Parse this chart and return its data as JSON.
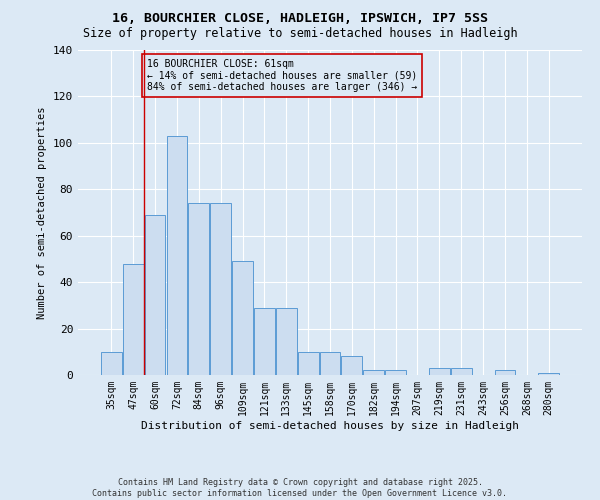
{
  "title1": "16, BOURCHIER CLOSE, HADLEIGH, IPSWICH, IP7 5SS",
  "title2": "Size of property relative to semi-detached houses in Hadleigh",
  "xlabel": "Distribution of semi-detached houses by size in Hadleigh",
  "ylabel": "Number of semi-detached properties",
  "categories": [
    "35sqm",
    "47sqm",
    "60sqm",
    "72sqm",
    "84sqm",
    "96sqm",
    "109sqm",
    "121sqm",
    "133sqm",
    "145sqm",
    "158sqm",
    "170sqm",
    "182sqm",
    "194sqm",
    "207sqm",
    "219sqm",
    "231sqm",
    "243sqm",
    "256sqm",
    "268sqm",
    "280sqm"
  ],
  "values": [
    10,
    48,
    69,
    103,
    74,
    74,
    49,
    29,
    29,
    10,
    10,
    8,
    2,
    2,
    0,
    3,
    3,
    0,
    2,
    0,
    1
  ],
  "bar_color": "#ccddf0",
  "bar_edge_color": "#5b9bd5",
  "property_label": "16 BOURCHIER CLOSE: 61sqm",
  "pct_smaller": 14,
  "pct_larger": 84,
  "n_smaller": 59,
  "n_larger": 346,
  "annotation_box_color": "#cc0000",
  "background_color": "#dce9f5",
  "grid_color": "#ffffff",
  "footer1": "Contains HM Land Registry data © Crown copyright and database right 2025.",
  "footer2": "Contains public sector information licensed under the Open Government Licence v3.0.",
  "ylim": [
    0,
    140
  ],
  "yticks": [
    0,
    20,
    40,
    60,
    80,
    100,
    120,
    140
  ],
  "vline_pos": 1.5
}
